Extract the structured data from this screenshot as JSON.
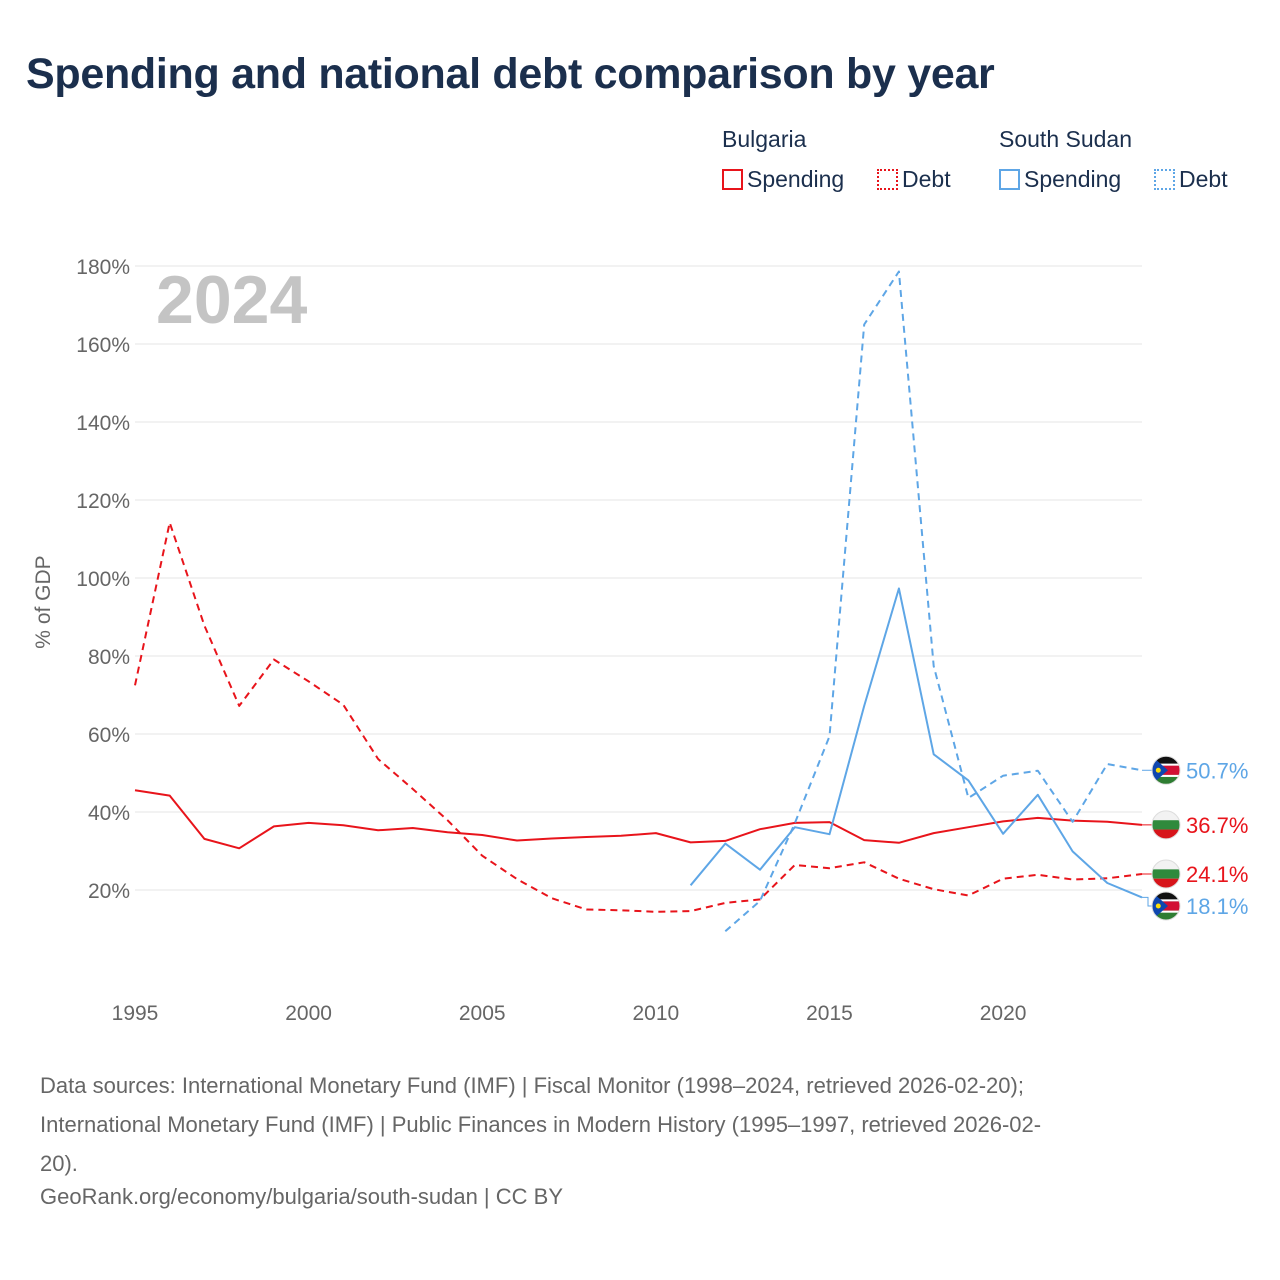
{
  "title": "Spending and national debt comparison by year",
  "legend": {
    "groups": [
      {
        "country": "Bulgaria",
        "color": "#e8141b",
        "items": [
          {
            "label": "Spending",
            "style": "solid"
          },
          {
            "label": "Debt",
            "style": "dotted"
          }
        ]
      },
      {
        "country": "South Sudan",
        "color": "#5ea6e6",
        "items": [
          {
            "label": "Spending",
            "style": "solid"
          },
          {
            "label": "Debt",
            "style": "dotted"
          }
        ]
      }
    ]
  },
  "source_lines": [
    "Data sources: International Monetary Fund (IMF) | Fiscal Monitor (1998–2024, retrieved 2026-02-20);",
    "International Monetary Fund (IMF) | Public Finances in Modern History (1995–1997, retrieved 2026-02-",
    "20)."
  ],
  "credit": "GeoRank.org/economy/bulgaria/south-sudan | CC BY",
  "chart_data": {
    "type": "line",
    "title": "Spending and national debt comparison by year",
    "year_watermark": "2024",
    "ylabel": "% of GDP",
    "xlabel": "",
    "xlim": [
      1995,
      2024
    ],
    "ylim": [
      0,
      180
    ],
    "x_ticks": [
      1995,
      2000,
      2005,
      2010,
      2015,
      2020
    ],
    "x_tick_labels": [
      "1995",
      "2000",
      "2005",
      "2010",
      "2015",
      "2020"
    ],
    "y_ticks": [
      20,
      40,
      60,
      80,
      100,
      120,
      140,
      160,
      180
    ],
    "y_tick_labels": [
      "20%",
      "40%",
      "60%",
      "80%",
      "100%",
      "120%",
      "140%",
      "160%",
      "180%"
    ],
    "grid": true,
    "series": [
      {
        "name": "Bulgaria Spending",
        "country": "Bulgaria",
        "flag": "bulgaria",
        "color": "#e8141b",
        "dash": "solid",
        "end_label": "36.7%",
        "x": [
          1995,
          1996,
          1997,
          1998,
          1999,
          2000,
          2001,
          2002,
          2003,
          2004,
          2005,
          2006,
          2007,
          2008,
          2009,
          2010,
          2011,
          2012,
          2013,
          2014,
          2015,
          2016,
          2017,
          2018,
          2019,
          2020,
          2021,
          2022,
          2023,
          2024
        ],
        "values": [
          45.6,
          44.2,
          33.1,
          30.7,
          36.3,
          37.2,
          36.6,
          35.3,
          35.9,
          34.8,
          34.1,
          32.7,
          33.2,
          33.6,
          33.9,
          34.6,
          32.2,
          32.6,
          35.6,
          37.2,
          37.4,
          32.8,
          32.1,
          34.6,
          36.1,
          37.6,
          38.5,
          37.8,
          37.5,
          36.7
        ]
      },
      {
        "name": "Bulgaria Debt",
        "country": "Bulgaria",
        "flag": "bulgaria",
        "color": "#e8141b",
        "dash": "dashed",
        "end_label": "24.1%",
        "x": [
          1995,
          1996,
          1997,
          1998,
          1999,
          2000,
          2001,
          2002,
          2003,
          2004,
          2005,
          2006,
          2007,
          2008,
          2009,
          2010,
          2011,
          2012,
          2013,
          2014,
          2015,
          2016,
          2017,
          2018,
          2019,
          2020,
          2021,
          2022,
          2023,
          2024
        ],
        "values": [
          72.5,
          114.2,
          87.8,
          67.2,
          79.1,
          73.5,
          67.5,
          53.6,
          45.9,
          37.9,
          28.8,
          22.8,
          17.9,
          15.0,
          14.8,
          14.4,
          14.6,
          16.7,
          17.6,
          26.4,
          25.6,
          27.1,
          22.9,
          20.2,
          18.6,
          22.9,
          23.9,
          22.7,
          23.0,
          24.1
        ]
      },
      {
        "name": "South Sudan Spending",
        "country": "South Sudan",
        "flag": "south-sudan",
        "color": "#5ea6e6",
        "dash": "solid",
        "end_label": "18.1%",
        "x": [
          2011,
          2012,
          2013,
          2014,
          2015,
          2016,
          2017,
          2018,
          2019,
          2020,
          2021,
          2022,
          2023,
          2024
        ],
        "values": [
          21.2,
          31.9,
          25.2,
          36.1,
          34.3,
          67.2,
          97.3,
          54.8,
          48.1,
          34.4,
          44.4,
          29.9,
          21.8,
          18.1
        ]
      },
      {
        "name": "South Sudan Debt",
        "country": "South Sudan",
        "flag": "south-sudan",
        "color": "#5ea6e6",
        "dash": "dashed",
        "end_label": "50.7%",
        "x": [
          2012,
          2013,
          2014,
          2015,
          2016,
          2017,
          2018,
          2019,
          2020,
          2021,
          2022,
          2023,
          2024
        ],
        "values": [
          9.4,
          17.2,
          37.1,
          59.4,
          165.0,
          178.6,
          77.4,
          43.6,
          49.3,
          50.6,
          37.5,
          52.3,
          50.7
        ]
      }
    ]
  }
}
